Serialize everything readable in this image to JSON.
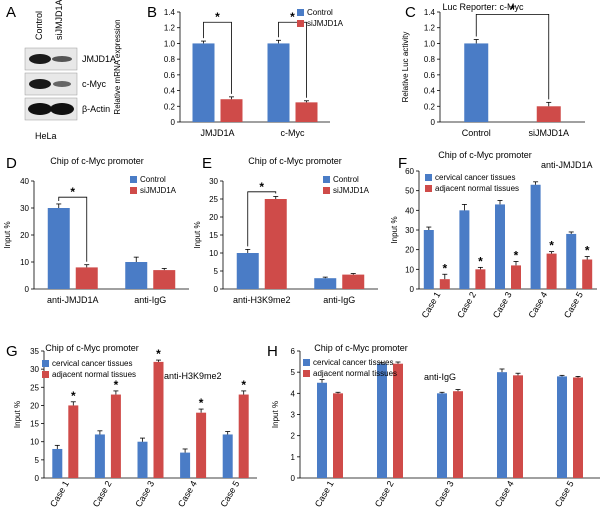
{
  "colors": {
    "blue": "#4a7cc6",
    "red": "#cf4b49",
    "band": "#1a1a1a"
  },
  "western_blot": {
    "panel_label": "A",
    "lanes": [
      "Control",
      "siJMJD1A"
    ],
    "bands": [
      "JMJD1A",
      "c-Myc",
      "β-Actin"
    ],
    "cell_line": "HeLa"
  },
  "chart_data": [
    {
      "id": "B",
      "type": "bar",
      "panel_label": "B",
      "title": "",
      "ylabel": "Relative mRNA expression",
      "xlabel": "",
      "ylim": [
        0,
        1.4
      ],
      "yticks": [
        0,
        0.2,
        0.4,
        0.6,
        0.8,
        1.0,
        1.2,
        1.4
      ],
      "tick_labels": [
        "0",
        "0.2",
        "0.4",
        "0.6",
        "0.8",
        "1.0",
        "1.2",
        "1.4"
      ],
      "categories": [
        "JMJD1A",
        "c-Myc"
      ],
      "series": [
        {
          "name": "Control",
          "color": "blue",
          "values": [
            1.0,
            1.0
          ],
          "errors": [
            0.03,
            0.04
          ]
        },
        {
          "name": "siJMJD1A",
          "color": "red",
          "values": [
            0.29,
            0.25
          ],
          "errors": [
            0.03,
            0.02
          ]
        }
      ],
      "legend": "top-right",
      "significance": [
        {
          "type": "bracket",
          "category": 0,
          "top": 1.27,
          "label": "*"
        },
        {
          "type": "bracket",
          "category": 1,
          "top": 1.27,
          "label": "*"
        }
      ],
      "annotation": ""
    },
    {
      "id": "C",
      "type": "bar",
      "panel_label": "C",
      "title": "Luc Reporter: c-Myc",
      "ylabel": "Relative Luc activity",
      "xlabel": "",
      "ylim": [
        0,
        1.4
      ],
      "yticks": [
        0,
        0.2,
        0.4,
        0.6,
        0.8,
        1.0,
        1.2,
        1.4
      ],
      "tick_labels": [
        "0",
        "0.2",
        "0.4",
        "0.6",
        "0.8",
        "1.0",
        "1.2",
        "1.4"
      ],
      "categories": [
        "Control",
        "siJMJD1A"
      ],
      "series": [
        {
          "name": "",
          "colors": [
            "blue",
            "red"
          ],
          "values": [
            1.0,
            0.2
          ],
          "errors": [
            0.05,
            0.05
          ]
        }
      ],
      "legend": "none",
      "significance": [
        {
          "type": "bracket-between",
          "from": 0,
          "to": 1,
          "top": 1.37,
          "label": "*"
        }
      ],
      "annotation": ""
    },
    {
      "id": "D",
      "type": "bar",
      "panel_label": "D",
      "title": "Chip of c-Myc promoter",
      "ylabel": "Input %",
      "xlabel": "",
      "ylim": [
        0,
        40
      ],
      "yticks": [
        0,
        10,
        20,
        30,
        40
      ],
      "tick_labels": [
        "0",
        "10",
        "20",
        "30",
        "40"
      ],
      "categories": [
        "anti-JMJD1A",
        "anti-IgG"
      ],
      "series": [
        {
          "name": "Control",
          "color": "blue",
          "values": [
            30,
            10
          ],
          "errors": [
            1.5,
            1.8
          ]
        },
        {
          "name": "siJMJD1A",
          "color": "red",
          "values": [
            8,
            7
          ],
          "errors": [
            1.0,
            0.6
          ]
        }
      ],
      "legend": "top-right",
      "significance": [
        {
          "type": "bracket",
          "category": 0,
          "top": 34,
          "label": "*"
        }
      ],
      "annotation": ""
    },
    {
      "id": "E",
      "type": "bar",
      "panel_label": "E",
      "title": "Chip of c-Myc promoter",
      "ylabel": "Input %",
      "xlabel": "",
      "ylim": [
        0,
        30
      ],
      "yticks": [
        0,
        5,
        10,
        15,
        20,
        25,
        30
      ],
      "tick_labels": [
        "0",
        "5",
        "10",
        "15",
        "20",
        "25",
        "30"
      ],
      "categories": [
        "anti-H3K9me2",
        "anti-IgG"
      ],
      "series": [
        {
          "name": "Control",
          "color": "blue",
          "values": [
            10,
            3
          ],
          "errors": [
            1.0,
            0.3
          ]
        },
        {
          "name": "siJMJD1A",
          "color": "red",
          "values": [
            25,
            4
          ],
          "errors": [
            0.7,
            0.3
          ]
        }
      ],
      "legend": "top-right",
      "significance": [
        {
          "type": "bracket",
          "category": 0,
          "top": 27,
          "label": "*"
        }
      ],
      "annotation": ""
    },
    {
      "id": "F",
      "type": "bar",
      "panel_label": "F",
      "title": "Chip of c-Myc promoter",
      "ylabel": "Input %",
      "xlabel": "",
      "ylim": [
        0,
        60
      ],
      "yticks": [
        0,
        10,
        20,
        30,
        40,
        50,
        60
      ],
      "tick_labels": [
        "0",
        "10",
        "20",
        "30",
        "40",
        "50",
        "60"
      ],
      "categories": [
        "Case 1",
        "Case 2",
        "Case 3",
        "Case 4",
        "Case 5"
      ],
      "series": [
        {
          "name": "cervical cancer tissues",
          "color": "blue",
          "values": [
            30,
            40,
            43,
            53,
            28
          ],
          "errors": [
            1.5,
            3,
            2,
            1.5,
            1
          ]
        },
        {
          "name": "adjacent normal tissues",
          "color": "red",
          "values": [
            5,
            10,
            12,
            18,
            15
          ],
          "errors": [
            2.5,
            1,
            2,
            1,
            1.5
          ]
        }
      ],
      "legend": "top-left",
      "significance": [
        {
          "type": "star",
          "category": 0
        },
        {
          "type": "star",
          "category": 1
        },
        {
          "type": "star",
          "category": 2
        },
        {
          "type": "star",
          "category": 3
        },
        {
          "type": "star",
          "category": 4
        }
      ],
      "annotation": "anti-JMJD1A"
    },
    {
      "id": "G",
      "type": "bar",
      "panel_label": "G",
      "title": "Chip of c-Myc promoter",
      "ylabel": "Input %",
      "xlabel": "",
      "ylim": [
        0,
        35
      ],
      "yticks": [
        0,
        5,
        10,
        15,
        20,
        25,
        30,
        35
      ],
      "tick_labels": [
        "0",
        "5",
        "10",
        "15",
        "20",
        "25",
        "30",
        "35"
      ],
      "categories": [
        "Case 1",
        "Case 2",
        "Case 3",
        "Case 4",
        "Case 5"
      ],
      "series": [
        {
          "name": "cervical cancer tissues",
          "color": "blue",
          "values": [
            8,
            12,
            10,
            7,
            12
          ],
          "errors": [
            1,
            1,
            1,
            1,
            0.8
          ]
        },
        {
          "name": "adjacent normal tissues",
          "color": "red",
          "values": [
            20,
            23,
            32,
            18,
            23
          ],
          "errors": [
            1,
            1,
            0.5,
            1,
            1
          ]
        }
      ],
      "legend": "top-left",
      "significance": [
        {
          "type": "star",
          "category": 0
        },
        {
          "type": "star",
          "category": 1
        },
        {
          "type": "star",
          "category": 2
        },
        {
          "type": "star",
          "category": 3
        },
        {
          "type": "star",
          "category": 4
        }
      ],
      "annotation": "anti-H3K9me2"
    },
    {
      "id": "H",
      "type": "bar",
      "panel_label": "H",
      "title": "Chip of c-Myc promoter",
      "ylabel": "Input %",
      "xlabel": "",
      "ylim": [
        0,
        6
      ],
      "yticks": [
        0,
        1,
        2,
        3,
        4,
        5,
        6
      ],
      "tick_labels": [
        "0",
        "1",
        "2",
        "3",
        "4",
        "5",
        "6"
      ],
      "categories": [
        "Case 1",
        "Case 2",
        "Case 3",
        "Case 4",
        "Case 5"
      ],
      "series": [
        {
          "name": "cervical cancer tissues",
          "color": "blue",
          "values": [
            4.5,
            5.4,
            4.0,
            5.0,
            4.8
          ],
          "errors": [
            0.15,
            0.05,
            0.05,
            0.15,
            0.05
          ]
        },
        {
          "name": "adjacent normal tissues",
          "color": "red",
          "values": [
            4.0,
            5.4,
            4.1,
            4.85,
            4.75
          ],
          "errors": [
            0.05,
            0.08,
            0.08,
            0.1,
            0.05
          ]
        }
      ],
      "legend": "top-left",
      "significance": [],
      "annotation": "anti-IgG"
    }
  ]
}
